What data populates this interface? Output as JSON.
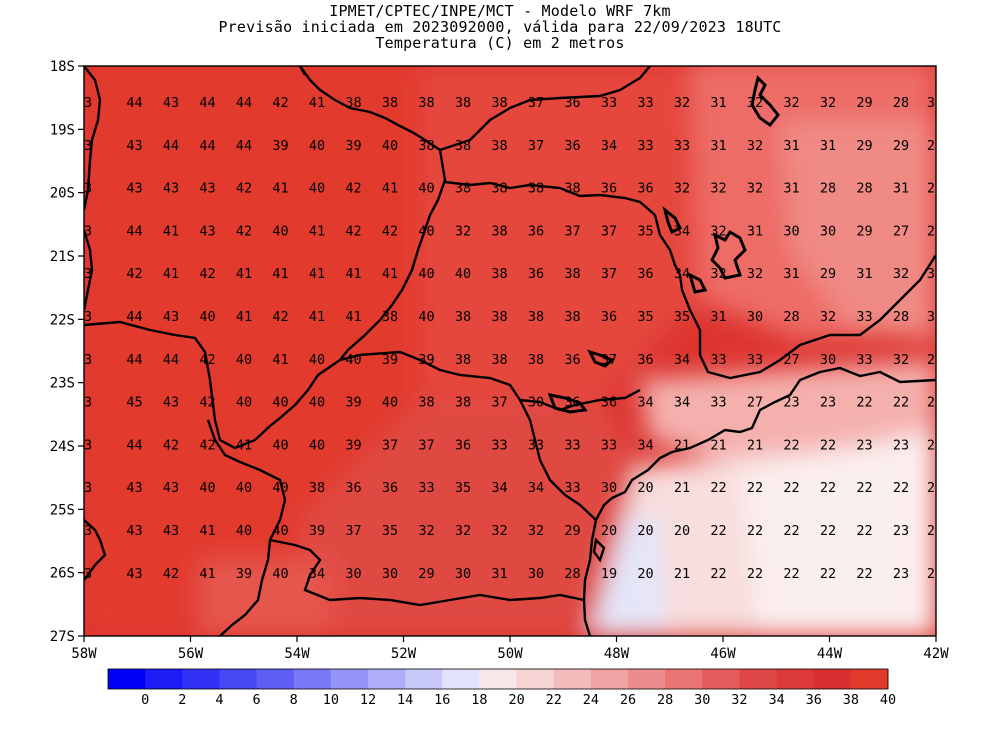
{
  "header": {
    "line1": "IPMET/CPTEC/INPE/MCT - Modelo WRF 7km",
    "line2": "Previsão iniciada em 2023092000, válida para 22/09/2023 18UTC",
    "line3": "Temperatura (C) em 2 metros"
  },
  "map": {
    "lat_labels": [
      "18S",
      "19S",
      "20S",
      "21S",
      "22S",
      "23S",
      "24S",
      "25S",
      "26S",
      "27S"
    ],
    "lon_labels": [
      "58W",
      "56W",
      "54W",
      "52W",
      "50W",
      "48W",
      "46W",
      "44W",
      "42W"
    ],
    "grid_values": [
      [
        3,
        44,
        43,
        44,
        44,
        42,
        41,
        38,
        38,
        38,
        38,
        38,
        37,
        36,
        33,
        33,
        32,
        31,
        32,
        32,
        32,
        29,
        28,
        3
      ],
      [
        3,
        43,
        44,
        44,
        44,
        39,
        40,
        39,
        40,
        38,
        38,
        38,
        37,
        36,
        34,
        33,
        33,
        31,
        32,
        31,
        31,
        29,
        29,
        2
      ],
      [
        3,
        43,
        43,
        43,
        42,
        41,
        40,
        42,
        41,
        40,
        38,
        38,
        38,
        38,
        36,
        36,
        32,
        32,
        32,
        31,
        28,
        28,
        31,
        2
      ],
      [
        3,
        44,
        41,
        43,
        42,
        40,
        41,
        42,
        42,
        40,
        32,
        38,
        36,
        37,
        37,
        35,
        34,
        32,
        31,
        30,
        30,
        29,
        27,
        2
      ],
      [
        3,
        42,
        41,
        42,
        41,
        41,
        41,
        41,
        41,
        40,
        40,
        38,
        36,
        38,
        37,
        36,
        34,
        32,
        32,
        31,
        29,
        31,
        32,
        3
      ],
      [
        3,
        44,
        43,
        40,
        41,
        42,
        41,
        41,
        38,
        40,
        38,
        38,
        38,
        38,
        36,
        35,
        35,
        31,
        30,
        28,
        32,
        33,
        28,
        3
      ],
      [
        3,
        44,
        44,
        42,
        40,
        41,
        40,
        40,
        39,
        39,
        38,
        38,
        38,
        36,
        37,
        36,
        34,
        33,
        33,
        27,
        30,
        33,
        32,
        2
      ],
      [
        3,
        45,
        43,
        42,
        40,
        40,
        40,
        39,
        40,
        38,
        38,
        37,
        30,
        36,
        36,
        34,
        34,
        33,
        27,
        23,
        23,
        22,
        22,
        2
      ],
      [
        3,
        44,
        42,
        42,
        41,
        40,
        40,
        39,
        37,
        37,
        36,
        33,
        33,
        33,
        33,
        34,
        21,
        21,
        21,
        22,
        22,
        23,
        23,
        2
      ],
      [
        3,
        43,
        43,
        40,
        40,
        40,
        38,
        36,
        36,
        33,
        35,
        34,
        34,
        33,
        30,
        20,
        21,
        22,
        22,
        22,
        22,
        22,
        22,
        2
      ],
      [
        3,
        43,
        43,
        41,
        40,
        40,
        39,
        37,
        35,
        32,
        32,
        32,
        32,
        29,
        20,
        20,
        20,
        22,
        22,
        22,
        22,
        22,
        23,
        2
      ],
      [
        3,
        43,
        42,
        41,
        39,
        40,
        34,
        30,
        30,
        29,
        30,
        31,
        30,
        28,
        19,
        20,
        21,
        22,
        22,
        22,
        22,
        22,
        23,
        2
      ]
    ]
  },
  "legend": {
    "colors": [
      "#0000f5",
      "#1d1df5",
      "#3232f5",
      "#4848f5",
      "#5e5ef5",
      "#7a7af6",
      "#9494f7",
      "#aeaef8",
      "#c8c8f9",
      "#e2e2fb",
      "#f7e9e9",
      "#f6d4d4",
      "#f3bcbc",
      "#f0a4a4",
      "#ec8c8c",
      "#e87474",
      "#e45c5c",
      "#e04848",
      "#dc3a3a",
      "#d83030",
      "#e03a2c"
    ],
    "labels": [
      "0",
      "2",
      "4",
      "6",
      "8",
      "10",
      "12",
      "14",
      "16",
      "18",
      "20",
      "22",
      "24",
      "26",
      "28",
      "30",
      "32",
      "34",
      "36",
      "38",
      "40"
    ]
  }
}
